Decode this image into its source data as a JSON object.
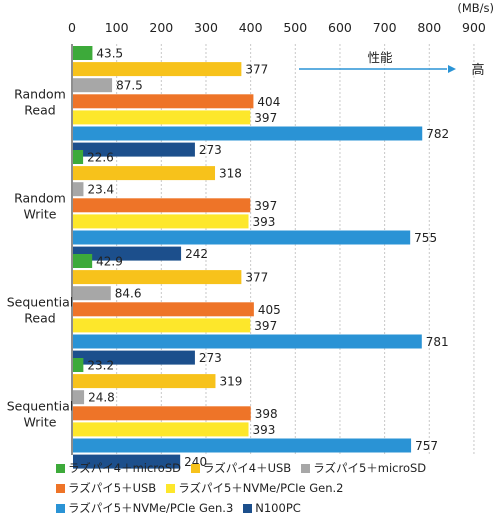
{
  "chart_data": {
    "type": "bar",
    "orientation": "horizontal",
    "unit": "(MB/s)",
    "x_ticks": [
      "0",
      "100",
      "200",
      "300",
      "400",
      "500",
      "600",
      "700",
      "800",
      "900"
    ],
    "xlim": [
      0,
      900
    ],
    "grid": true,
    "categories": [
      {
        "line1": "Random",
        "line2": "Read"
      },
      {
        "line1": "Random",
        "line2": "Write"
      },
      {
        "line1": "Sequential",
        "line2": "Read"
      },
      {
        "line1": "Sequential",
        "line2": "Write"
      }
    ],
    "series": [
      {
        "name": "ラズパイ4＋microSD",
        "color": "#3daa3a",
        "values": [
          43.5,
          22.6,
          42.9,
          23.2
        ],
        "labels": [
          "43.5",
          "22.6",
          "42.9",
          "23.2"
        ]
      },
      {
        "name": "ラズパイ4＋USB",
        "color": "#f7c21b",
        "values": [
          377,
          318,
          377,
          319
        ],
        "labels": [
          "377",
          "318",
          "377",
          "319"
        ]
      },
      {
        "name": "ラズパイ5＋microSD",
        "color": "#a7a7a7",
        "values": [
          87.5,
          23.4,
          84.6,
          24.8
        ],
        "labels": [
          "87.5",
          "23.4",
          "84.6",
          "24.8"
        ]
      },
      {
        "name": "ラズパイ5＋USB",
        "color": "#ee7428",
        "values": [
          404,
          397,
          405,
          398
        ],
        "labels": [
          "404",
          "397",
          "405",
          "398"
        ]
      },
      {
        "name": "ラズパイ5＋NVMe/PCIe Gen.2",
        "color": "#fde72b",
        "values": [
          397,
          393,
          397,
          393
        ],
        "labels": [
          "397",
          "393",
          "397",
          "393"
        ]
      },
      {
        "name": "ラズパイ5＋NVMe/PCIe Gen.3",
        "color": "#2a93d5",
        "values": [
          782,
          755,
          781,
          757
        ],
        "labels": [
          "782",
          "755",
          "781",
          "757"
        ]
      },
      {
        "name": "N100PC",
        "color": "#1c4f8c",
        "values": [
          273,
          242,
          273,
          240
        ],
        "labels": [
          "273",
          "242",
          "273",
          "240"
        ]
      }
    ],
    "annotation": {
      "text": "性能",
      "arrow_to": "高",
      "color": "#2a93d5"
    },
    "legend_rows": [
      [
        0,
        1,
        2
      ],
      [
        3,
        4
      ],
      [
        5,
        6
      ]
    ]
  }
}
